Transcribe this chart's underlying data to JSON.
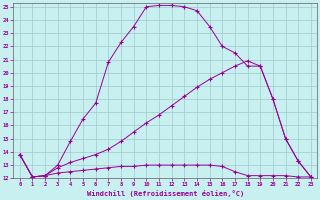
{
  "xlabel": "Windchill (Refroidissement éolien,°C)",
  "background_color": "#c8f0f0",
  "grid_color": "#a0c8c8",
  "line_color": "#990099",
  "xlim": [
    -0.5,
    23.5
  ],
  "ylim": [
    12,
    25.3
  ],
  "xticks": [
    0,
    1,
    2,
    3,
    4,
    5,
    6,
    7,
    8,
    9,
    10,
    11,
    12,
    13,
    14,
    15,
    16,
    17,
    18,
    19,
    20,
    21,
    22,
    23
  ],
  "yticks": [
    12,
    13,
    14,
    15,
    16,
    17,
    18,
    19,
    20,
    21,
    22,
    23,
    24,
    25
  ],
  "line1_x": [
    0,
    1,
    2,
    3,
    4,
    5,
    6,
    7,
    8,
    9,
    10,
    11,
    12,
    13,
    14,
    15,
    16,
    17,
    18,
    19,
    20,
    21,
    22,
    23
  ],
  "line1_y": [
    13.8,
    12.1,
    12.2,
    13.0,
    14.8,
    16.5,
    17.7,
    20.8,
    22.3,
    23.5,
    25.0,
    25.1,
    25.1,
    25.0,
    24.7,
    23.5,
    22.0,
    21.5,
    20.5,
    20.5,
    18.0,
    15.0,
    13.3,
    12.1
  ],
  "line2_x": [
    0,
    1,
    2,
    3,
    4,
    5,
    6,
    7,
    8,
    9,
    10,
    11,
    12,
    13,
    14,
    15,
    16,
    17,
    18,
    19,
    20,
    21,
    22,
    23
  ],
  "line2_y": [
    13.8,
    12.1,
    12.2,
    12.8,
    13.2,
    13.5,
    13.8,
    14.2,
    14.8,
    15.5,
    16.2,
    16.8,
    17.5,
    18.2,
    18.9,
    19.5,
    20.0,
    20.5,
    20.9,
    20.5,
    18.0,
    15.0,
    13.3,
    12.1
  ],
  "line3_x": [
    0,
    1,
    2,
    3,
    4,
    5,
    6,
    7,
    8,
    9,
    10,
    11,
    12,
    13,
    14,
    15,
    16,
    17,
    18,
    19,
    20,
    21,
    22,
    23
  ],
  "line3_y": [
    13.8,
    12.1,
    12.2,
    12.4,
    12.5,
    12.6,
    12.7,
    12.8,
    12.9,
    12.9,
    13.0,
    13.0,
    13.0,
    13.0,
    13.0,
    13.0,
    12.9,
    12.5,
    12.2,
    12.2,
    12.2,
    12.2,
    12.1,
    12.1
  ]
}
